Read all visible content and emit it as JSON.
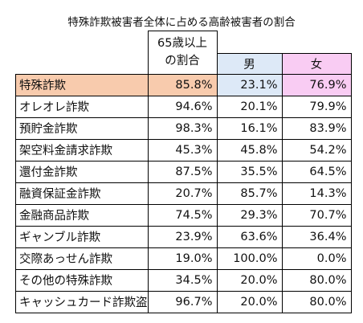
{
  "title": "特殊詐欺被害者全体に占める高齢被害者の割合",
  "headers": {
    "age65_line1": "65歳以上",
    "age65_line2": "の割合",
    "male": "男",
    "female": "女"
  },
  "colors": {
    "highlight_row": "#f8cbad",
    "male_header": "#dde9f7",
    "female_header": "#f9ccf3"
  },
  "rows": [
    {
      "label": "特殊詐欺",
      "age65": "85.8%",
      "male": "23.1%",
      "female": "76.9%"
    },
    {
      "label": "オレオレ詐欺",
      "age65": "94.6%",
      "male": "20.1%",
      "female": "79.9%"
    },
    {
      "label": "預貯金詐欺",
      "age65": "98.3%",
      "male": "16.1%",
      "female": "83.9%"
    },
    {
      "label": "架空料金請求詐欺",
      "age65": "45.3%",
      "male": "45.8%",
      "female": "54.2%"
    },
    {
      "label": "還付金詐欺",
      "age65": "87.5%",
      "male": "35.5%",
      "female": "64.5%"
    },
    {
      "label": "融資保証金詐欺",
      "age65": "20.7%",
      "male": "85.7%",
      "female": "14.3%"
    },
    {
      "label": "金融商品詐欺",
      "age65": "74.5%",
      "male": "29.3%",
      "female": "70.7%"
    },
    {
      "label": "ギャンブル詐欺",
      "age65": "23.9%",
      "male": "63.6%",
      "female": "36.4%"
    },
    {
      "label": "交際あっせん詐欺",
      "age65": "19.0%",
      "male": "100.0%",
      "female": "0.0%"
    },
    {
      "label": "その他の特殊詐欺",
      "age65": "34.5%",
      "male": "20.0%",
      "female": "80.0%"
    },
    {
      "label": "キャッシュカード詐欺盗",
      "age65": "96.7%",
      "male": "20.0%",
      "female": "80.0%"
    }
  ]
}
